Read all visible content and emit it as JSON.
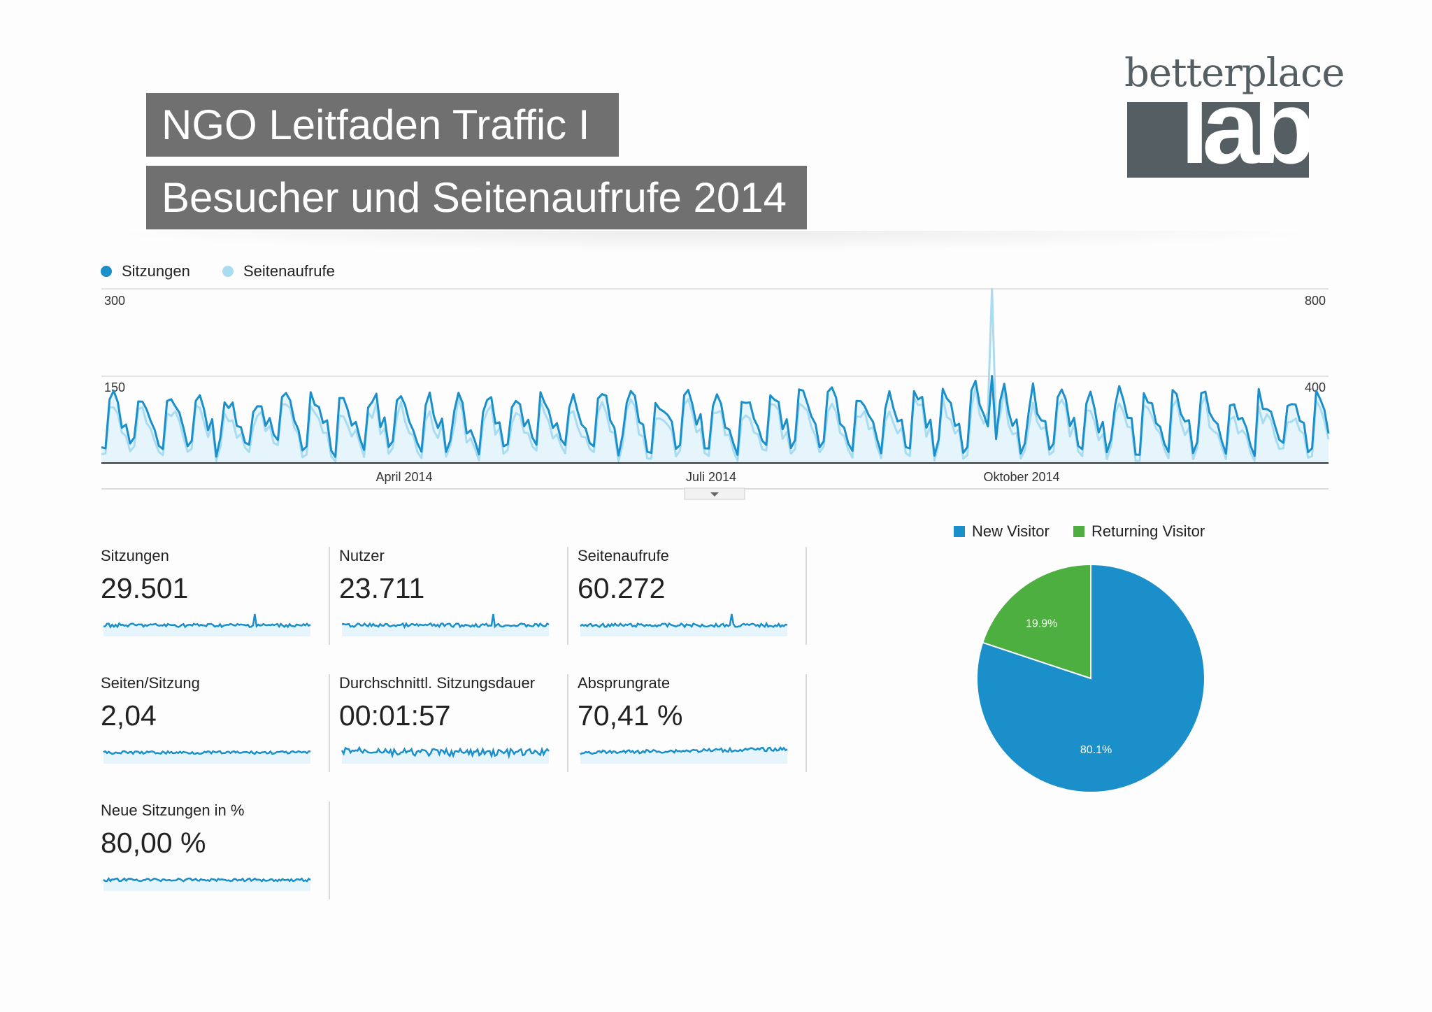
{
  "header": {
    "title": "NGO Leitfaden Traffic I",
    "subtitle": "Besucher und Seitenaufrufe 2014"
  },
  "logo": {
    "wordmark": "betterplace",
    "lab": "lab"
  },
  "colors": {
    "title_bg": "#707070",
    "logo_gray": "#555e63",
    "sessions": "#1a8fc9",
    "pageviews": "#a9dcf0",
    "area_fill": "#e6f4fb",
    "returning": "#4caf3f"
  },
  "chart_data": [
    {
      "type": "line",
      "legend": [
        {
          "name": "Sitzungen",
          "color": "#1a8fc9"
        },
        {
          "name": "Seitenaufrufe",
          "color": "#a9dcf0"
        }
      ],
      "y_left_ticks": [
        "300",
        "150"
      ],
      "y_right_ticks": [
        "800",
        "400"
      ],
      "y_left_range": [
        0,
        300
      ],
      "y_right_range": [
        0,
        800
      ],
      "x_labels": [
        "April 2014",
        "Juli 2014",
        "Oktober 2014"
      ],
      "series": [
        {
          "name": "Sitzungen",
          "axis": "left",
          "weekly_peak_range": [
            95,
            140
          ],
          "weekly_low_range": [
            15,
            45
          ],
          "max": 150
        },
        {
          "name": "Seitenaufrufe",
          "axis": "right",
          "spike_month": "Oktober 2014",
          "max": 760
        }
      ],
      "legend_position": "top-left"
    },
    {
      "type": "pie",
      "legend": [
        {
          "name": "New Visitor",
          "color": "#1a8fc9"
        },
        {
          "name": "Returning Visitor",
          "color": "#4caf3f"
        }
      ],
      "slices": [
        {
          "name": "New Visitor",
          "value": 80.1,
          "label": "80.1%"
        },
        {
          "name": "Returning Visitor",
          "value": 19.9,
          "label": "19.9%"
        }
      ],
      "legend_position": "top"
    }
  ],
  "metrics": [
    {
      "label": "Sitzungen",
      "value": "29.501",
      "trend": "spike"
    },
    {
      "label": "Nutzer",
      "value": "23.711",
      "trend": "spike"
    },
    {
      "label": "Seitenaufrufe",
      "value": "60.272",
      "trend": "spike"
    },
    {
      "label": "Seiten/Sitzung",
      "value": "2,04",
      "trend": "flat"
    },
    {
      "label": "Durchschnittl. Sitzungsdauer",
      "value": "00:01:57",
      "trend": "noisy"
    },
    {
      "label": "Absprungrate",
      "value": "70,41 %",
      "trend": "rising"
    },
    {
      "label": "Neue Sitzungen in %",
      "value": "80,00 %",
      "trend": "flat"
    }
  ]
}
